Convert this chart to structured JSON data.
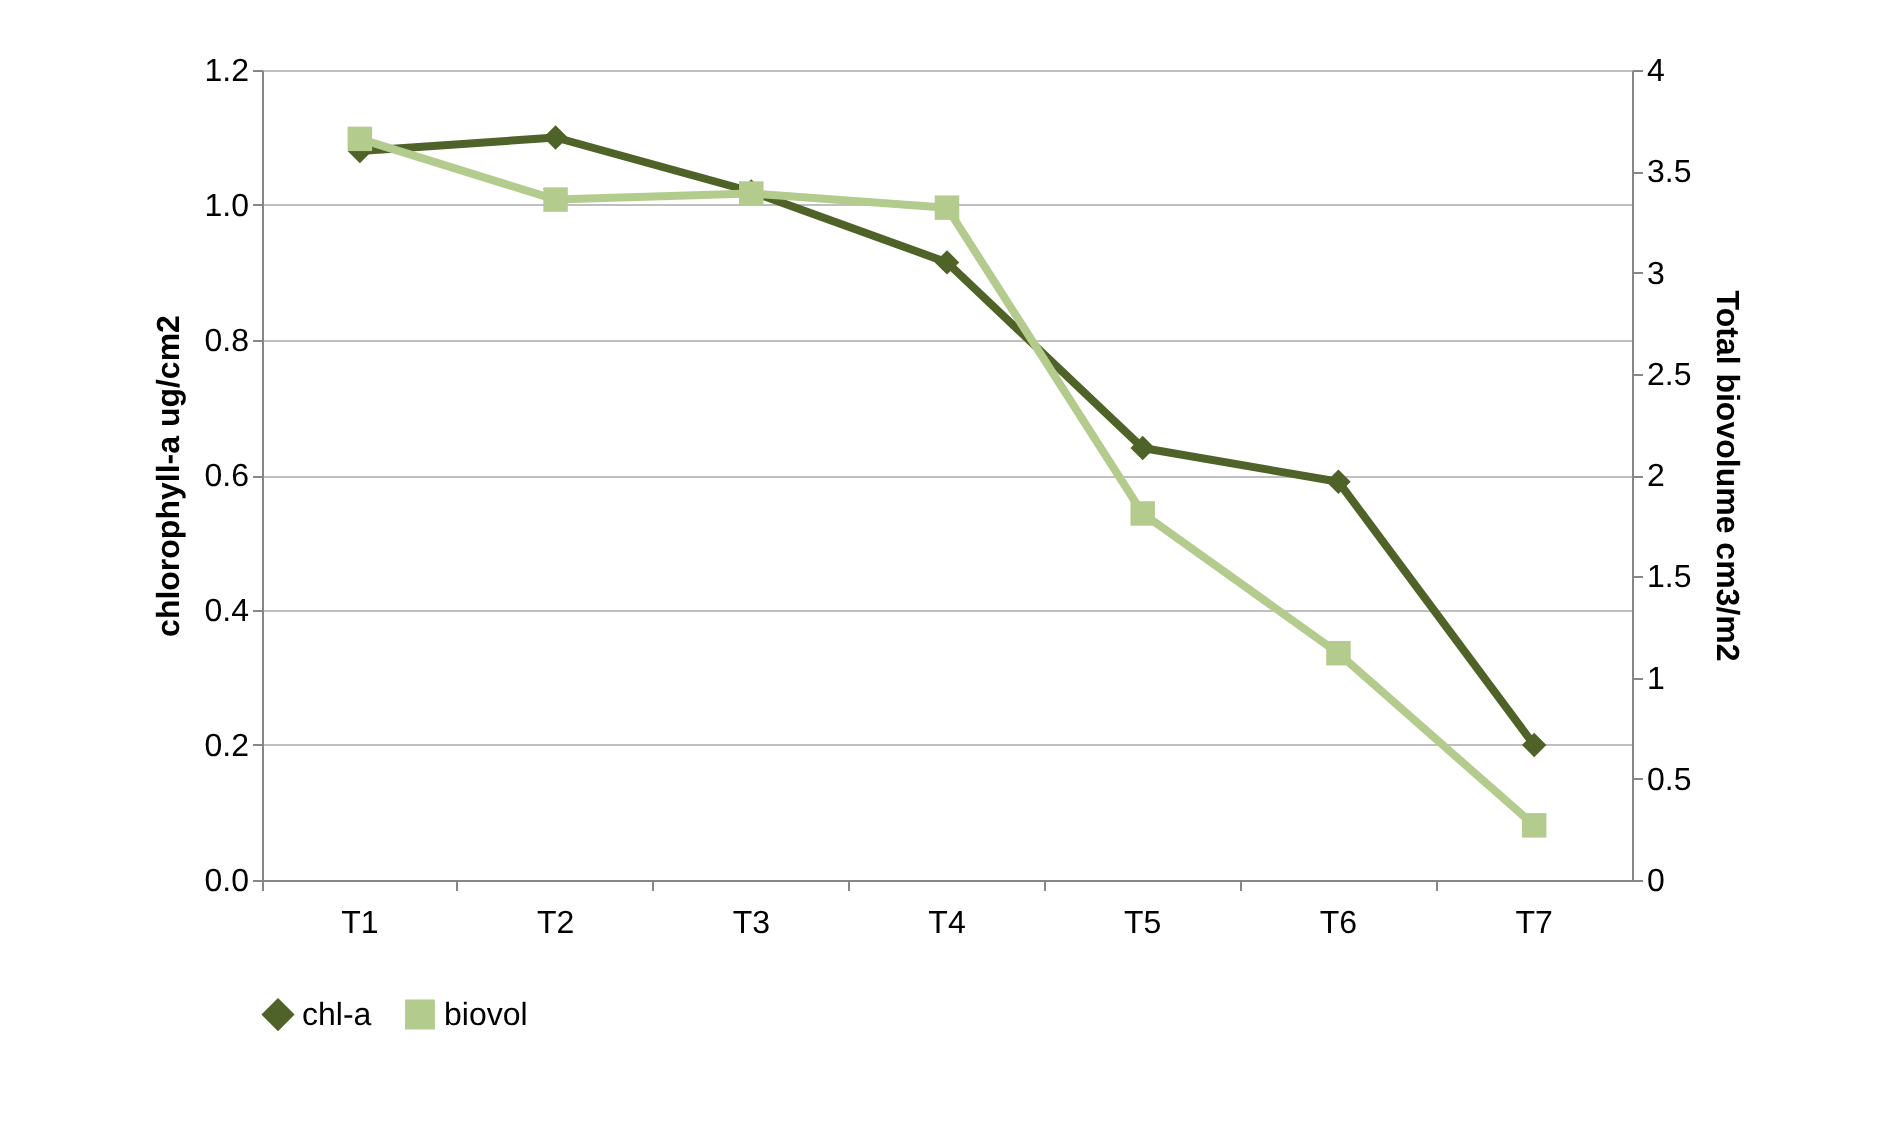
{
  "chart_data": {
    "type": "line",
    "ylabel": "chlorophyll-a ug/cm2",
    "y2label": "Total biovolume cm3/m2",
    "categories": [
      "T1",
      "T2",
      "T3",
      "T4",
      "T5",
      "T6",
      "T7"
    ],
    "series": [
      {
        "name": "chl-a",
        "color": "#4f6228",
        "marker": "diamond",
        "values": [
          1.08,
          1.1,
          1.02,
          0.915,
          0.64,
          0.59,
          0.2
        ]
      },
      {
        "name": "biovol",
        "color": "#b3cb8d",
        "marker": "square",
        "axis": "y2",
        "values": [
          3.66,
          3.36,
          3.39,
          3.32,
          1.81,
          1.12,
          0.27
        ]
      }
    ],
    "ylim": [
      0,
      1.2
    ],
    "yticks": [
      {
        "value": 0,
        "label": "0.0"
      },
      {
        "value": 0.2,
        "label": "0.2"
      },
      {
        "value": 0.4,
        "label": "0.4"
      },
      {
        "value": 0.6,
        "label": "0.6"
      },
      {
        "value": 0.8,
        "label": "0.8"
      },
      {
        "value": 1,
        "label": "1.0"
      },
      {
        "value": 1.2,
        "label": "1.2"
      }
    ],
    "y2lim": [
      0,
      4
    ],
    "y2ticks": [
      0,
      0.5,
      1,
      1.5,
      2,
      2.5,
      3,
      3.5,
      4
    ],
    "grid": "y",
    "legend": "bottom"
  }
}
